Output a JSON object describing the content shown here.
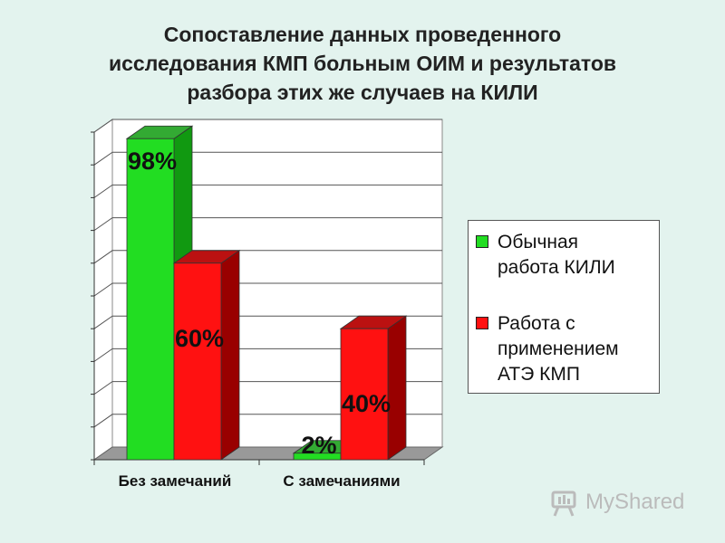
{
  "title": {
    "lines": [
      "Сопоставление данных проведенного",
      "исследования КМП больным ОИМ и результатов",
      "разбора этих же случаев на КИЛИ"
    ]
  },
  "legend": {
    "items": [
      {
        "lines": [
          "Обычная",
          "работа КИЛИ"
        ]
      },
      {
        "lines": [
          "Работа с",
          "применением",
          "АТЭ КМП"
        ]
      }
    ]
  },
  "watermark": {
    "text": "MyShared",
    "icon": "myshared-logo-icon"
  },
  "chart_data": {
    "type": "bar",
    "title": "Сопоставление данных проведенного исследования КМП больным ОИМ и результатов разбора этих же случаев на КИЛИ",
    "categories": [
      "Без замечаний",
      "С замечаниями"
    ],
    "series": [
      {
        "name": "Обычная работа КИЛИ",
        "values": [
          98,
          2
        ],
        "labels": [
          "98%",
          "2%"
        ],
        "color": "#22dd22",
        "side_color": "#119911",
        "top_color": "#33aa33"
      },
      {
        "name": "Работа с применением АТЭ КМП",
        "values": [
          60,
          40
        ],
        "labels": [
          "60%",
          "40%"
        ],
        "color": "#ff1111",
        "side_color": "#990000",
        "top_color": "#bb1111"
      }
    ],
    "ylim": [
      0,
      100
    ],
    "grid": true,
    "legend_position": "right",
    "style": "3d-bar"
  }
}
